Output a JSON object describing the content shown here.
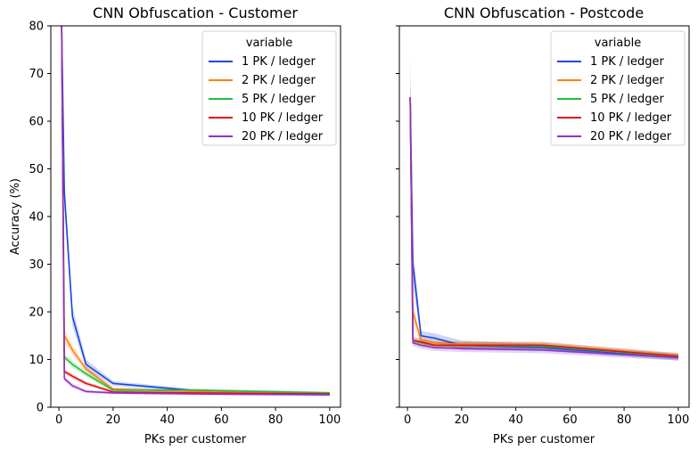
{
  "colors": {
    "1 PK / ledger": "#1a45e0",
    "2 PK / ledger": "#ff7f0e",
    "5 PK / ledger": "#22c040",
    "10 PK / ledger": "#e01010",
    "20 PK / ledger": "#9130c8"
  },
  "chart_data": [
    {
      "type": "line",
      "title": "CNN Obfuscation - Customer",
      "xlabel": "PKs per customer",
      "ylabel": "Accuracy (%)",
      "xlim": [
        -3,
        104
      ],
      "ylim": [
        0,
        80
      ],
      "xticks": [
        0,
        20,
        40,
        60,
        80,
        100
      ],
      "yticks": [
        0,
        10,
        20,
        30,
        40,
        50,
        60,
        70,
        80
      ],
      "legend": {
        "title": "variable",
        "position": "top-right"
      },
      "x": [
        1,
        2,
        5,
        10,
        20,
        50,
        100
      ],
      "series": [
        {
          "name": "1 PK / ledger",
          "values": [
            80,
            45,
            19,
            9,
            5,
            3.5,
            2.9
          ],
          "ci": [
            [
              78,
              82
            ],
            [
              42,
              48
            ],
            [
              17,
              21
            ],
            [
              8,
              10
            ],
            [
              4.5,
              5.5
            ],
            [
              3.2,
              3.8
            ],
            [
              2.6,
              3.2
            ]
          ]
        },
        {
          "name": "2 PK / ledger",
          "values": [
            80,
            15,
            12,
            8,
            3.8,
            3.3,
            2.8
          ],
          "ci": [
            [
              78,
              82
            ],
            [
              13.5,
              16.5
            ],
            [
              11,
              13
            ],
            [
              7.3,
              8.7
            ],
            [
              3.4,
              4.2
            ],
            [
              3,
              3.6
            ],
            [
              2.5,
              3.1
            ]
          ]
        },
        {
          "name": "5 PK / ledger",
          "values": [
            80,
            10.5,
            9,
            7,
            3.6,
            3.6,
            3
          ],
          "ci": [
            [
              78,
              82
            ],
            [
              9.8,
              11.2
            ],
            [
              8.3,
              9.7
            ],
            [
              6.4,
              7.6
            ],
            [
              3.2,
              4
            ],
            [
              3.3,
              3.9
            ],
            [
              2.7,
              3.3
            ]
          ]
        },
        {
          "name": "10 PK / ledger",
          "values": [
            80,
            7.5,
            6.5,
            5,
            3.2,
            3,
            2.8
          ],
          "ci": [
            [
              78,
              82
            ],
            [
              7,
              8
            ],
            [
              6,
              7
            ],
            [
              4.6,
              5.4
            ],
            [
              2.9,
              3.5
            ],
            [
              2.7,
              3.3
            ],
            [
              2.5,
              3.1
            ]
          ]
        },
        {
          "name": "20 PK / ledger",
          "values": [
            80,
            6,
            4.5,
            3.3,
            3,
            2.8,
            2.6
          ],
          "ci": [
            [
              78,
              82
            ],
            [
              5.5,
              6.5
            ],
            [
              4,
              5
            ],
            [
              3,
              3.6
            ],
            [
              2.7,
              3.3
            ],
            [
              2.5,
              3.1
            ],
            [
              2.3,
              2.9
            ]
          ]
        }
      ]
    },
    {
      "type": "line",
      "title": "CNN Obfuscation - Postcode",
      "xlabel": "PKs per customer",
      "ylabel": "",
      "xlim": [
        -3,
        104
      ],
      "ylim": [
        0,
        80
      ],
      "xticks": [
        0,
        20,
        40,
        60,
        80,
        100
      ],
      "yticks": [],
      "legend": {
        "title": "variable",
        "position": "top-right"
      },
      "x": [
        1,
        2,
        5,
        10,
        20,
        50,
        100
      ],
      "series": [
        {
          "name": "1 PK / ledger",
          "values": [
            65,
            30,
            15,
            14.5,
            13,
            12.5,
            10.5
          ],
          "ci": [
            [
              56,
              74
            ],
            [
              26,
              34
            ],
            [
              14,
              16
            ],
            [
              13.5,
              15.5
            ],
            [
              12,
              14
            ],
            [
              11.8,
              13.2
            ],
            [
              9.8,
              11.2
            ]
          ]
        },
        {
          "name": "2 PK / ledger",
          "values": [
            65,
            20,
            14,
            13.5,
            13.2,
            13,
            10.8
          ],
          "ci": [
            [
              58,
              69
            ],
            [
              18,
              22
            ],
            [
              13.2,
              14.8
            ],
            [
              12.8,
              14.2
            ],
            [
              12.5,
              13.9
            ],
            [
              12.3,
              13.7
            ],
            [
              10.2,
              11.4
            ]
          ]
        },
        {
          "name": "5 PK / ledger",
          "values": [
            65,
            14,
            13.5,
            13,
            13,
            12.8,
            10.6
          ],
          "ci": [
            [
              61,
              69
            ],
            [
              13.2,
              14.8
            ],
            [
              12.8,
              14.2
            ],
            [
              12.3,
              13.7
            ],
            [
              12.3,
              13.7
            ],
            [
              12.1,
              13.5
            ],
            [
              10,
              11.2
            ]
          ]
        },
        {
          "name": "10 PK / ledger",
          "values": [
            65,
            14,
            13.7,
            13,
            13,
            13,
            10.7
          ],
          "ci": [
            [
              62,
              68
            ],
            [
              13.3,
              14.7
            ],
            [
              13,
              14.4
            ],
            [
              12.3,
              13.7
            ],
            [
              12.3,
              13.7
            ],
            [
              12.3,
              13.7
            ],
            [
              10.1,
              11.3
            ]
          ]
        },
        {
          "name": "20 PK / ledger",
          "values": [
            65,
            13.5,
            13,
            12.5,
            12.3,
            12,
            10.4
          ],
          "ci": [
            [
              62,
              68
            ],
            [
              12.8,
              14.2
            ],
            [
              12.3,
              13.7
            ],
            [
              11.8,
              13.2
            ],
            [
              11.6,
              13
            ],
            [
              11.3,
              12.7
            ],
            [
              9.8,
              11
            ]
          ]
        }
      ]
    }
  ]
}
